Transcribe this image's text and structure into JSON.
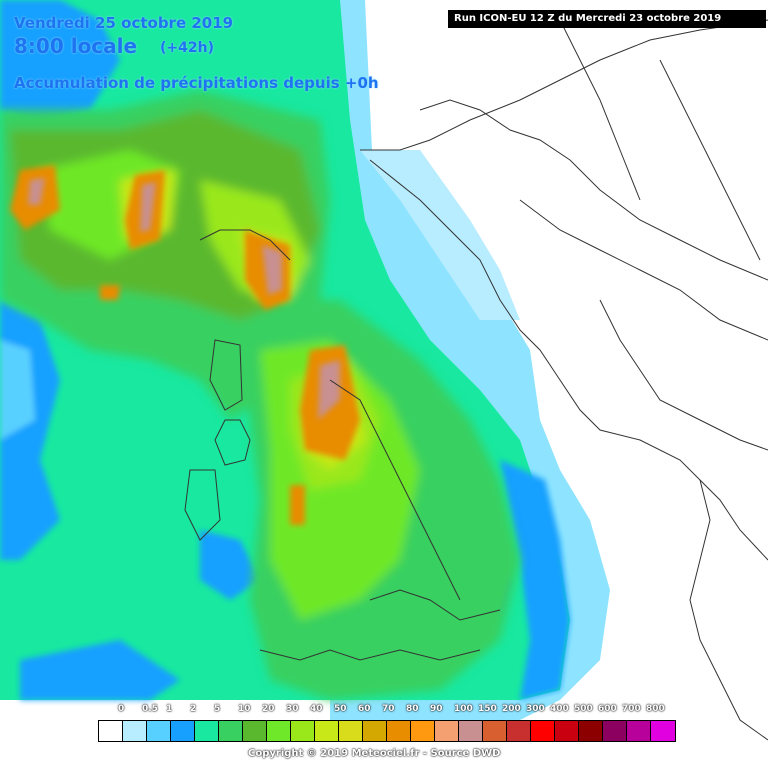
{
  "header": {
    "date": "Vendredi 25 octobre 2019",
    "time": "8:00 locale",
    "lead": "(+42h)",
    "accumulation_title": "Accumulation de précipitations depuis +0h"
  },
  "run_label": "Run ICON-EU 12 Z du Mercredi 23 octobre 2019",
  "legend": {
    "labels": [
      "0",
      "0.5",
      "1",
      "2",
      "5",
      "10",
      "20",
      "30",
      "40",
      "50",
      "60",
      "70",
      "80",
      "90",
      "100",
      "150",
      "200",
      "300",
      "400",
      "500",
      "600",
      "700",
      "800"
    ],
    "colors": [
      "#ffffff",
      "#b8ecff",
      "#58d0ff",
      "#18a0ff",
      "#18e8a0",
      "#38d060",
      "#5ab82e",
      "#6ee828",
      "#9ae81a",
      "#c8e818",
      "#d8dc1a",
      "#d4a800",
      "#e88c00",
      "#ff9a10",
      "#f4a070",
      "#c89090",
      "#d86030",
      "#c83030",
      "#ff0000",
      "#c80010",
      "#8c0000",
      "#8c0060",
      "#b8009a",
      "#e000e0"
    ],
    "copyright": "Copyright © 2019 Meteociel.fr - Source DWD"
  },
  "map": {
    "sea_color": "#88e6ff",
    "land_color": "#ffffff",
    "border_color": "#333333"
  }
}
